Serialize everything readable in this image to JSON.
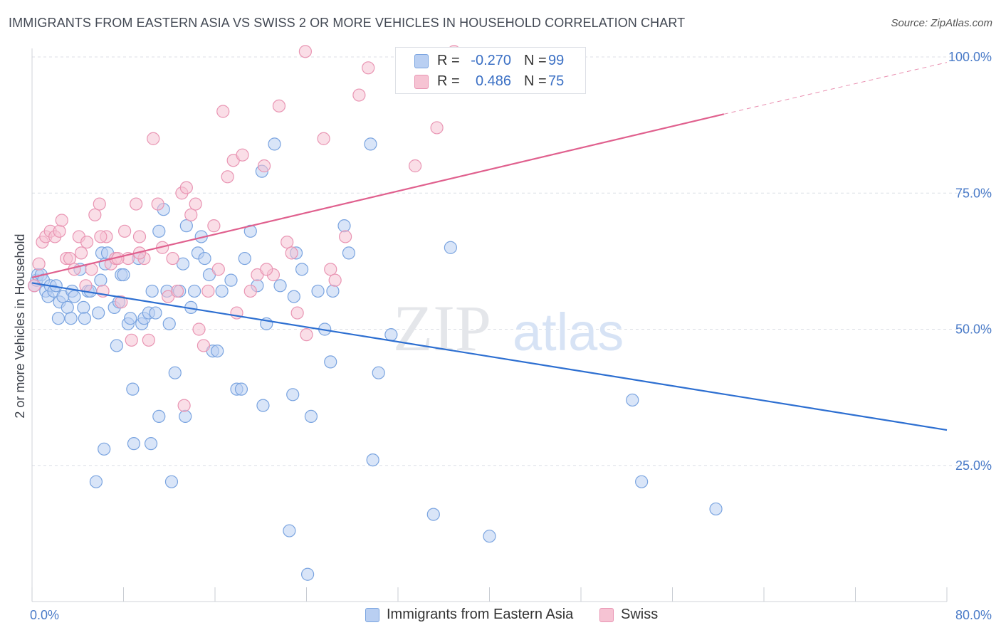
{
  "title": "IMMIGRANTS FROM EASTERN ASIA VS SWISS 2 OR MORE VEHICLES IN HOUSEHOLD CORRELATION CHART",
  "source": "Source: ZipAtlas.com",
  "watermark": {
    "zip": "ZIP",
    "atlas": "atlas"
  },
  "colors": {
    "blue_fill": "#b9cff2",
    "blue_stroke": "#7aa4e0",
    "blue_line": "#2d6fd1",
    "pink_fill": "#f6c3d3",
    "pink_stroke": "#e995b3",
    "pink_line": "#e0608e",
    "grid": "#dcdfe5",
    "tick_text": "#4a7bc8"
  },
  "legend": {
    "r_label": "R =",
    "n_label": "N =",
    "rows": [
      {
        "series": "blue",
        "r": "-0.270",
        "n": "99"
      },
      {
        "series": "pink",
        "r": "0.486",
        "n": "75"
      }
    ]
  },
  "bottom_legend": [
    {
      "series": "blue",
      "label": "Immigrants from Eastern Asia"
    },
    {
      "series": "pink",
      "label": "Swiss"
    }
  ],
  "chart_data": {
    "type": "scatter",
    "xlabel": "",
    "ylabel": "2 or more Vehicles in Household",
    "xlim": [
      0,
      80
    ],
    "ylim": [
      0,
      100
    ],
    "x_tick_labels": [
      "0.0%",
      "80.0%"
    ],
    "y_tick_labels": [
      "25.0%",
      "50.0%",
      "75.0%",
      "100.0%"
    ],
    "y_ticks": [
      25,
      50,
      75,
      100
    ],
    "grid": true,
    "series": [
      {
        "name": "Immigrants from Eastern Asia",
        "color": "blue",
        "points": [
          [
            0.2,
            58
          ],
          [
            0.4,
            59
          ],
          [
            0.5,
            60
          ],
          [
            0.8,
            60
          ],
          [
            1.0,
            59
          ],
          [
            1.2,
            57
          ],
          [
            1.4,
            56
          ],
          [
            1.6,
            58
          ],
          [
            1.9,
            57
          ],
          [
            2.1,
            58
          ],
          [
            2.3,
            52
          ],
          [
            2.4,
            55
          ],
          [
            2.7,
            56
          ],
          [
            3.1,
            54
          ],
          [
            3.4,
            52
          ],
          [
            3.5,
            57
          ],
          [
            3.7,
            56
          ],
          [
            4.2,
            61
          ],
          [
            4.5,
            54
          ],
          [
            4.6,
            52
          ],
          [
            4.9,
            57
          ],
          [
            5.1,
            57
          ],
          [
            5.8,
            53
          ],
          [
            6.0,
            59
          ],
          [
            6.1,
            64
          ],
          [
            6.4,
            62
          ],
          [
            6.6,
            64
          ],
          [
            7.2,
            54
          ],
          [
            7.4,
            47
          ],
          [
            7.6,
            55
          ],
          [
            7.8,
            60
          ],
          [
            8.0,
            60
          ],
          [
            8.4,
            51
          ],
          [
            8.6,
            52
          ],
          [
            8.8,
            39
          ],
          [
            9.3,
            63
          ],
          [
            9.6,
            51
          ],
          [
            9.8,
            52
          ],
          [
            10.2,
            53
          ],
          [
            10.5,
            57
          ],
          [
            10.8,
            53
          ],
          [
            11.1,
            68
          ],
          [
            11.5,
            72
          ],
          [
            11.8,
            57
          ],
          [
            12.0,
            51
          ],
          [
            12.5,
            42
          ],
          [
            12.9,
            57
          ],
          [
            13.2,
            62
          ],
          [
            13.5,
            69
          ],
          [
            13.9,
            54
          ],
          [
            14.2,
            57
          ],
          [
            14.5,
            64
          ],
          [
            14.8,
            67
          ],
          [
            15.1,
            63
          ],
          [
            15.5,
            60
          ],
          [
            15.8,
            46
          ],
          [
            16.2,
            46
          ],
          [
            16.6,
            57
          ],
          [
            17.4,
            59
          ],
          [
            17.9,
            39
          ],
          [
            18.3,
            39
          ],
          [
            18.6,
            63
          ],
          [
            19.1,
            68
          ],
          [
            19.7,
            58
          ],
          [
            20.1,
            79
          ],
          [
            20.5,
            51
          ],
          [
            21.2,
            84
          ],
          [
            21.7,
            58
          ],
          [
            22.8,
            38
          ],
          [
            23.1,
            64
          ],
          [
            23.6,
            61
          ],
          [
            24.4,
            34
          ],
          [
            26.3,
            57
          ],
          [
            27.3,
            69
          ],
          [
            27.7,
            64
          ],
          [
            29.6,
            84
          ],
          [
            29.8,
            26
          ],
          [
            30.3,
            42
          ],
          [
            31.4,
            49
          ],
          [
            35.1,
            16
          ],
          [
            36.6,
            65
          ],
          [
            40.0,
            12
          ],
          [
            52.5,
            37
          ],
          [
            53.3,
            22
          ],
          [
            59.8,
            17
          ],
          [
            6.3,
            28
          ],
          [
            8.9,
            29
          ],
          [
            10.4,
            29
          ],
          [
            11.1,
            34
          ],
          [
            12.2,
            22
          ],
          [
            13.4,
            34
          ],
          [
            5.6,
            22
          ],
          [
            24.1,
            5
          ],
          [
            25.0,
            57
          ],
          [
            20.2,
            36
          ],
          [
            22.5,
            13
          ],
          [
            26.1,
            44
          ],
          [
            25.6,
            50
          ],
          [
            22.9,
            56
          ]
        ]
      },
      {
        "name": "Swiss",
        "color": "pink",
        "points": [
          [
            0.2,
            58
          ],
          [
            0.6,
            62
          ],
          [
            0.9,
            66
          ],
          [
            1.2,
            67
          ],
          [
            1.6,
            68
          ],
          [
            2.0,
            67
          ],
          [
            2.4,
            68
          ],
          [
            2.6,
            70
          ],
          [
            3.0,
            63
          ],
          [
            3.3,
            63
          ],
          [
            3.7,
            61
          ],
          [
            4.1,
            67
          ],
          [
            4.3,
            64
          ],
          [
            4.8,
            66
          ],
          [
            5.2,
            61
          ],
          [
            5.5,
            71
          ],
          [
            5.9,
            73
          ],
          [
            6.2,
            57
          ],
          [
            6.5,
            67
          ],
          [
            6.9,
            62
          ],
          [
            7.3,
            63
          ],
          [
            7.8,
            55
          ],
          [
            8.1,
            68
          ],
          [
            8.4,
            63
          ],
          [
            8.7,
            48
          ],
          [
            9.1,
            73
          ],
          [
            9.4,
            67
          ],
          [
            9.8,
            63
          ],
          [
            10.2,
            48
          ],
          [
            10.6,
            85
          ],
          [
            11.0,
            73
          ],
          [
            11.4,
            65
          ],
          [
            11.9,
            56
          ],
          [
            12.3,
            63
          ],
          [
            12.7,
            57
          ],
          [
            13.1,
            75
          ],
          [
            13.5,
            76
          ],
          [
            13.9,
            71
          ],
          [
            14.3,
            73
          ],
          [
            14.6,
            50
          ],
          [
            15.0,
            47
          ],
          [
            15.4,
            57
          ],
          [
            15.9,
            69
          ],
          [
            16.3,
            61
          ],
          [
            16.7,
            90
          ],
          [
            17.1,
            78
          ],
          [
            17.6,
            81
          ],
          [
            17.9,
            53
          ],
          [
            18.4,
            82
          ],
          [
            19.1,
            57
          ],
          [
            19.7,
            60
          ],
          [
            20.3,
            80
          ],
          [
            21.1,
            60
          ],
          [
            21.6,
            91
          ],
          [
            22.3,
            66
          ],
          [
            22.7,
            64
          ],
          [
            23.2,
            53
          ],
          [
            24.0,
            49
          ],
          [
            25.5,
            85
          ],
          [
            26.1,
            61
          ],
          [
            27.4,
            67
          ],
          [
            28.6,
            93
          ],
          [
            33.5,
            80
          ],
          [
            35.4,
            87
          ],
          [
            36.9,
            101
          ],
          [
            38.5,
            100
          ],
          [
            29.4,
            98
          ],
          [
            26.5,
            59
          ],
          [
            13.3,
            36
          ],
          [
            9.4,
            64
          ],
          [
            4.7,
            58
          ],
          [
            6.0,
            67
          ],
          [
            7.5,
            63
          ],
          [
            23.9,
            101
          ],
          [
            20.5,
            61
          ]
        ]
      }
    ],
    "trend_lines": [
      {
        "series": "blue",
        "x": [
          0,
          80
        ],
        "y": [
          58.5,
          31.5
        ],
        "style": "solid"
      },
      {
        "series": "pink",
        "x": [
          0,
          60.5
        ],
        "y": [
          59.5,
          89.5
        ],
        "style": "solid"
      },
      {
        "series": "pink",
        "x": [
          60.5,
          80
        ],
        "y": [
          89.5,
          99.0
        ],
        "style": "dashed"
      }
    ]
  }
}
